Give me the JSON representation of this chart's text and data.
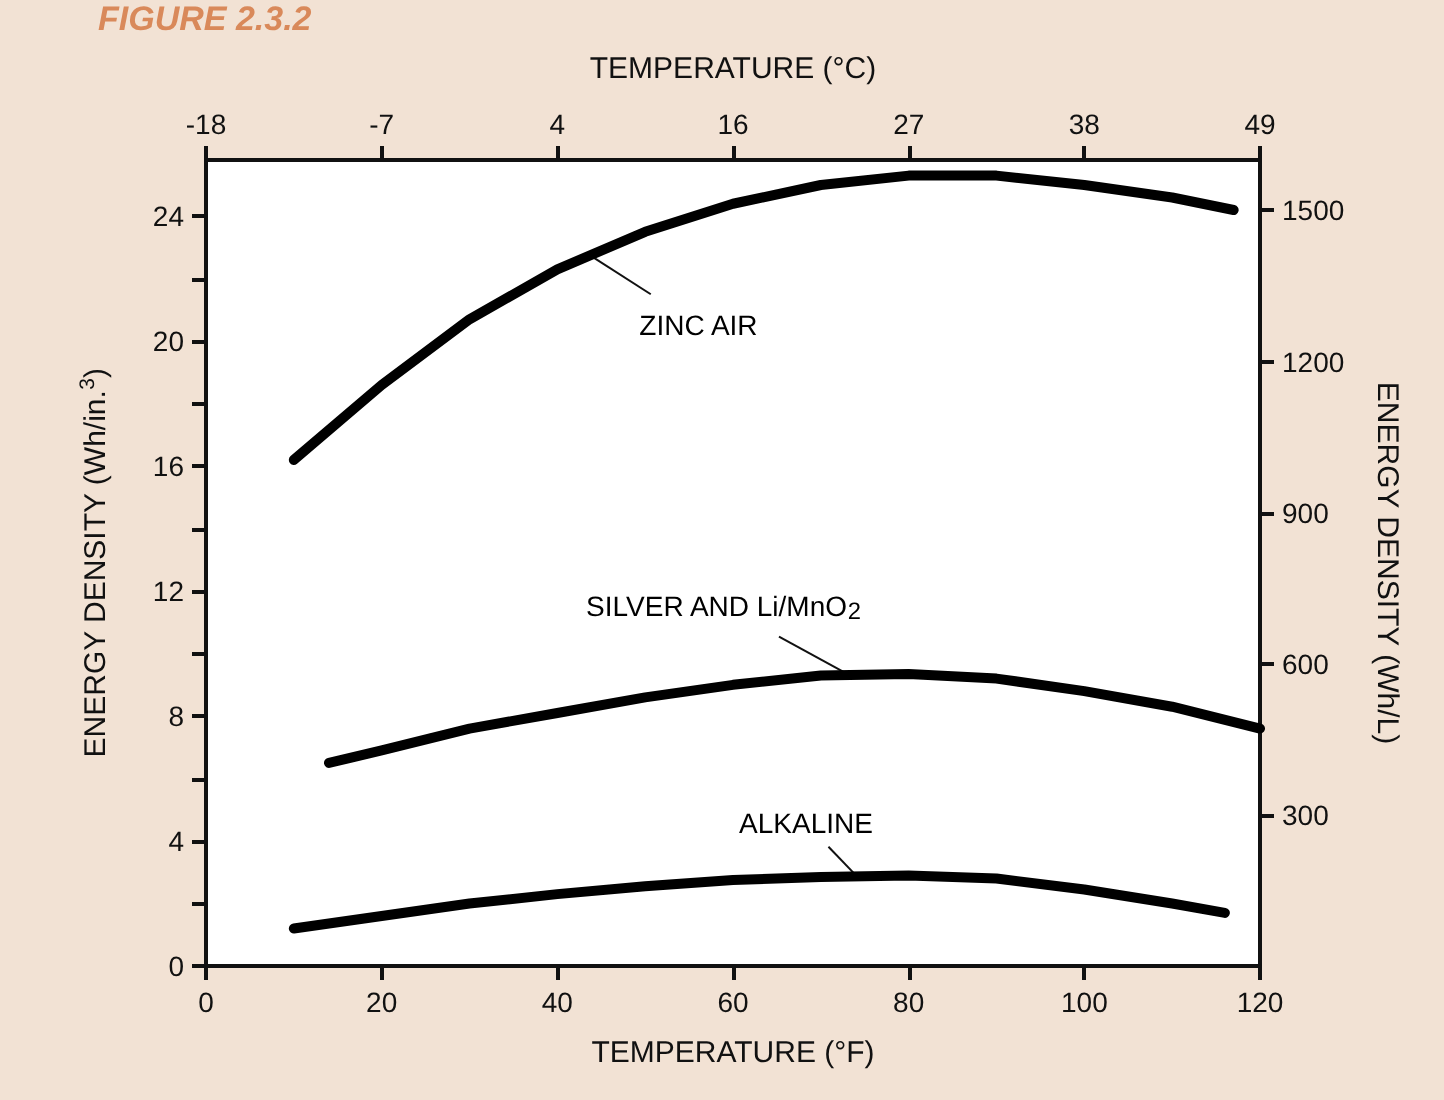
{
  "chart_data": {
    "type": "line",
    "title": "FIGURE 2.3.2",
    "xlabel": "TEMPERATURE (°F)",
    "x2label": "TEMPERATURE (°C)",
    "ylabel": "ENERGY DENSITY (Wh/in.$^{3}$)",
    "y2label": "ENERGY DENSITY (Wh/L)",
    "xlim": [
      0,
      120
    ],
    "xticks": [
      0,
      20,
      40,
      60,
      80,
      100,
      120
    ],
    "x2lim": [
      -17.78,
      48.89
    ],
    "x2ticks": [
      {
        "value": -17.78,
        "label": "-18"
      },
      {
        "value": -6.67,
        "label": "-7"
      },
      {
        "value": 4.44,
        "label": "4"
      },
      {
        "value": 15.56,
        "label": "16"
      },
      {
        "value": 26.67,
        "label": "27"
      },
      {
        "value": 37.78,
        "label": "38"
      },
      {
        "value": 48.89,
        "label": "49"
      }
    ],
    "ylim": [
      0,
      25.8
    ],
    "yticks": [
      0,
      {
        "value": 2,
        "label": null
      },
      4,
      {
        "value": 6,
        "label": null
      },
      8,
      {
        "value": 10,
        "label": null
      },
      12,
      {
        "value": 14,
        "label": null
      },
      16,
      {
        "value": 18,
        "label": null
      },
      20,
      {
        "value": 22,
        "label": null
      },
      24
    ],
    "y2lim": [
      0,
      1600
    ],
    "y2ticks": [
      300,
      600,
      900,
      1200,
      1500
    ],
    "marker": "none",
    "line_style": "solid",
    "series": [
      {
        "color": "#000000",
        "x": [
          10,
          20,
          30,
          40,
          50,
          60,
          70,
          80,
          90,
          100,
          110,
          117
        ],
        "values": [
          16.2,
          18.6,
          20.7,
          22.3,
          23.5,
          24.4,
          25.0,
          25.3,
          25.3,
          25.0,
          24.6,
          24.2
        ]
      },
      {
        "color": "#000000",
        "x": [
          14,
          20,
          30,
          40,
          50,
          60,
          70,
          80,
          90,
          100,
          110,
          120
        ],
        "values": [
          6.5,
          6.9,
          7.6,
          8.1,
          8.6,
          9.0,
          9.3,
          9.35,
          9.2,
          8.8,
          8.3,
          7.6
        ]
      },
      {
        "color": "#000000",
        "x": [
          10,
          20,
          30,
          40,
          50,
          60,
          70,
          80,
          90,
          100,
          110,
          116
        ],
        "values": [
          1.2,
          1.6,
          2.0,
          2.3,
          2.55,
          2.75,
          2.85,
          2.9,
          2.8,
          2.45,
          2.0,
          1.7
        ]
      }
    ],
    "annotations": [
      {
        "text": "ZINC AIR",
        "x": 44,
        "y": 22.7
      },
      {
        "text": "SILVER AND Li/MnO$_{2}$",
        "x": 73,
        "y": 9.35
      },
      {
        "text": "ALKALINE",
        "x": 74,
        "y": 2.9
      }
    ]
  }
}
